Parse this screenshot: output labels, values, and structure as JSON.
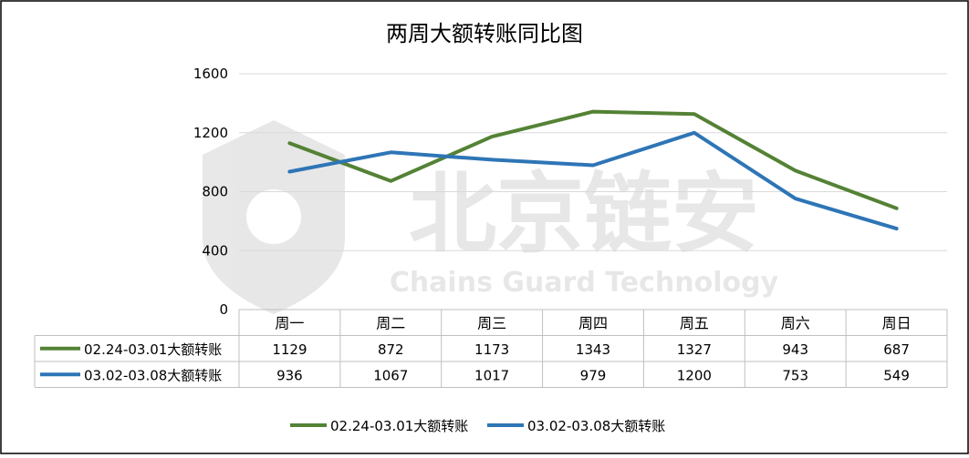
{
  "chart_data": {
    "type": "line",
    "title": "两周大额转账同比图",
    "categories": [
      "周一",
      "周二",
      "周三",
      "周四",
      "周五",
      "周六",
      "周日"
    ],
    "ylim": [
      0,
      1600
    ],
    "yticks": [
      0,
      400,
      800,
      1200,
      1600
    ],
    "grid": true,
    "legend": "bottom",
    "data_table": true,
    "series": [
      {
        "name": "02.24-03.01大额转账",
        "color": "#548235",
        "values": [
          1129,
          872,
          1173,
          1343,
          1327,
          943,
          687
        ]
      },
      {
        "name": "03.02-03.08大额转账",
        "color": "#2e75b6",
        "values": [
          936,
          1067,
          1017,
          979,
          1200,
          753,
          549
        ]
      }
    ]
  },
  "watermark": {
    "text": "北京链安",
    "subtext": "Chains Guard Technology"
  }
}
